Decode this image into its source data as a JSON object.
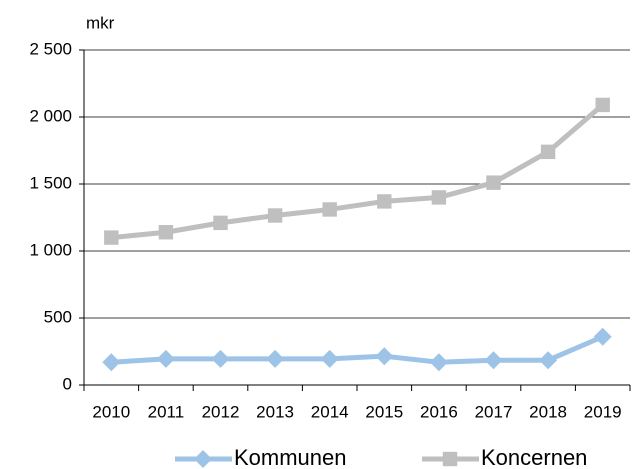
{
  "chart_data": {
    "type": "line",
    "ylabel": "mkr",
    "categories": [
      "2010",
      "2011",
      "2012",
      "2013",
      "2014",
      "2015",
      "2016",
      "2017",
      "2018",
      "2019"
    ],
    "series": [
      {
        "name": "Kommunen",
        "color": "#9dc3e6",
        "marker": "diamond",
        "values": [
          170,
          195,
          195,
          195,
          195,
          215,
          170,
          185,
          185,
          360
        ]
      },
      {
        "name": "Koncernen",
        "color": "#bfbfbf",
        "marker": "square",
        "values": [
          1100,
          1140,
          1210,
          1265,
          1310,
          1370,
          1400,
          1510,
          1740,
          2090
        ]
      }
    ],
    "ylim": [
      0,
      2500
    ],
    "yticks": [
      0,
      500,
      {
        "value": 1000,
        "label": "1 000"
      },
      {
        "value": 1500,
        "label": "1 500"
      },
      {
        "value": 2000,
        "label": "2 000"
      },
      {
        "value": 2500,
        "label": "2 500"
      }
    ],
    "grid": true,
    "legend": "bottom"
  }
}
